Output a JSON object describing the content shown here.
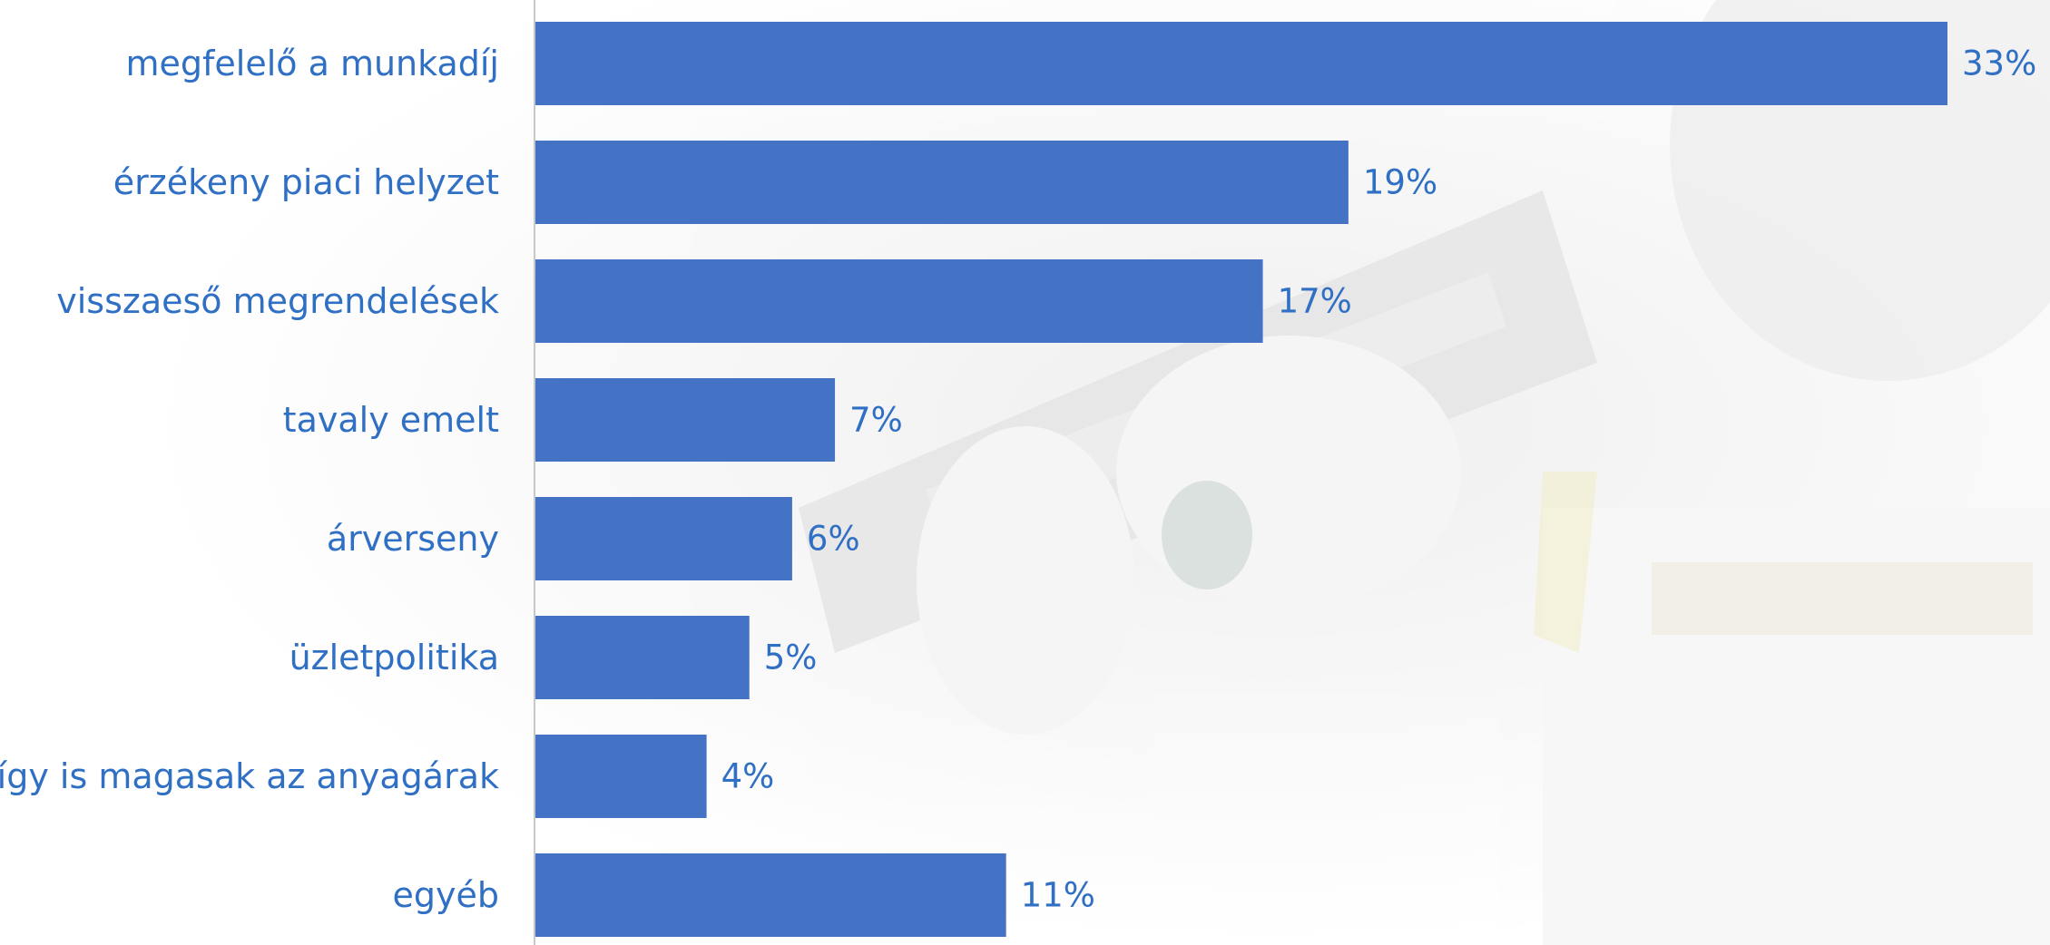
{
  "chart_data": {
    "type": "bar",
    "orientation": "horizontal",
    "categories": [
      "megfelelő a munkadíj",
      "érzékeny piaci helyzet",
      "visszaeső megrendelések",
      "tavaly emelt",
      "árverseny",
      "üzletpolitika",
      "így is magasak az anyagárak",
      "egyéb"
    ],
    "values": [
      33,
      19,
      17,
      7,
      6,
      5,
      4,
      11
    ],
    "value_labels": [
      "33%",
      "19%",
      "17%",
      "7%",
      "6%",
      "5%",
      "4%",
      "11%"
    ],
    "unit": "%",
    "xlim": [
      0,
      33
    ],
    "grid": false,
    "legend": "none",
    "bar_color": "#4472c4",
    "label_color": "#2f6fc4",
    "axis_color": "#c8c8c8"
  }
}
